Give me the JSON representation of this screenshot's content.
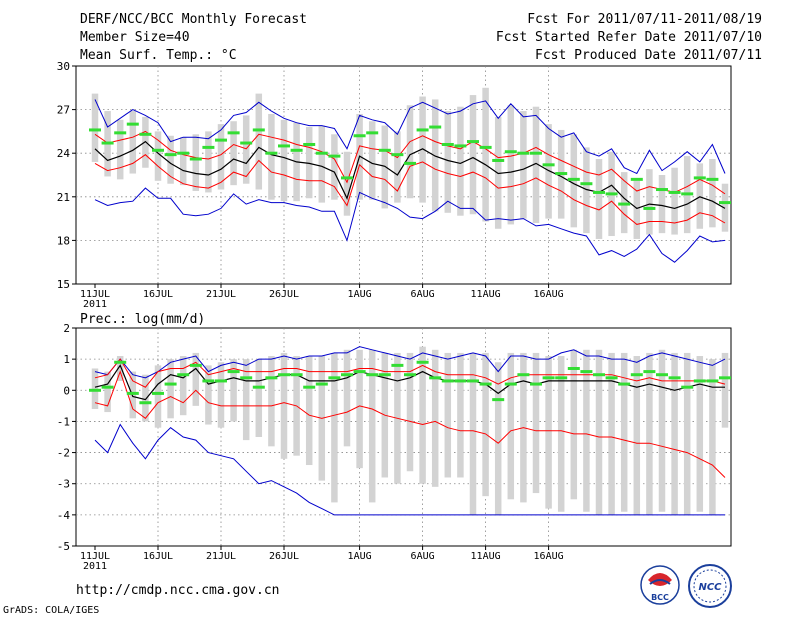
{
  "header": {
    "title": "DERF/NCC/BCC Monthly Forecast",
    "member_size": "Member Size=40",
    "temp_label": "Mean Surf. Temp.: °C",
    "forecast_period": "Fcst For 2011/07/11-2011/08/19",
    "started_refer": "Fcst Started Refer Date 2011/07/10",
    "produced": "Fcst Produced Date 2011/07/11",
    "prec_label": "Prec.: log(mm/d)"
  },
  "footer": {
    "url": "http://cmdp.ncc.cma.gov.cn",
    "credit": "GrADS: COLA/IGES",
    "logo_bcc_text": "BCC",
    "logo_ncc_text": "NCC"
  },
  "colors": {
    "box": "#d3d3d3",
    "mean": "#000000",
    "spread": "#ff0000",
    "extreme": "#0000cc",
    "obs": "#33dd33",
    "grid": "#888888"
  },
  "chart_data": [
    {
      "type": "box-ensemble",
      "title": "Mean Surf. Temp.: °C",
      "ylim": [
        15,
        30
      ],
      "yticks": [
        15,
        18,
        21,
        24,
        27,
        30
      ],
      "x_tick_labels": [
        "11JUL",
        "16JUL",
        "21JUL",
        "26JUL",
        "1AUG",
        "6AUG",
        "11AUG",
        "16AUG"
      ],
      "x_tick_sublabel": "2011",
      "series": [
        {
          "name": "mean",
          "values": [
            24.3,
            23.5,
            23.8,
            24.2,
            24.8,
            24,
            23.3,
            22.8,
            22.6,
            22.5,
            22.9,
            23.6,
            23.3,
            24.4,
            23.9,
            23.7,
            23.4,
            23.3,
            23.1,
            22.7,
            20.9,
            23.8,
            23.3,
            23.1,
            22.5,
            23.9,
            24.3,
            23.8,
            23.5,
            23.3,
            23.7,
            23.2,
            22.6,
            22.7,
            22.9,
            23.3,
            22.8,
            22.4,
            21.9,
            21.5,
            21.3,
            21.8,
            20.9,
            20.2,
            20.5,
            20.4,
            20.2,
            20.5,
            21,
            20.7,
            20.2
          ]
        },
        {
          "name": "upper_spread",
          "values": [
            25.3,
            24.7,
            24.9,
            25.1,
            25.5,
            24.9,
            24.2,
            23.9,
            23.7,
            23.6,
            23.9,
            24.6,
            24.3,
            25.3,
            25.1,
            24.9,
            24.6,
            24.4,
            24.1,
            23.6,
            22,
            24.5,
            24.3,
            24.2,
            23.7,
            24.8,
            25.2,
            24.8,
            24.5,
            24.3,
            24.8,
            24.3,
            23.7,
            23.8,
            24,
            24.4,
            23.9,
            23.5,
            23.1,
            22.7,
            22.5,
            22.9,
            22.1,
            21.4,
            21.7,
            21.5,
            21.3,
            21.7,
            22.2,
            21.8,
            21.2
          ]
        },
        {
          "name": "lower_spread",
          "values": [
            23.3,
            22.8,
            23,
            23.3,
            23.9,
            23.1,
            22.4,
            21.9,
            21.7,
            21.6,
            22,
            22.7,
            22.4,
            23.5,
            22.7,
            22.5,
            22.2,
            22.1,
            22.1,
            21.7,
            20.4,
            23.2,
            22.4,
            22.2,
            21.4,
            23.1,
            23.4,
            22.9,
            22.6,
            22.4,
            22.7,
            22.3,
            21.6,
            21.7,
            21.9,
            22.3,
            21.8,
            21.4,
            20.8,
            20.4,
            20.1,
            20.7,
            19.8,
            19.1,
            19.3,
            19.3,
            19.2,
            19.4,
            19.9,
            19.7,
            19.2
          ]
        },
        {
          "name": "max",
          "values": [
            27.7,
            25.8,
            26.4,
            27,
            26.6,
            26.1,
            24.8,
            25.1,
            25.1,
            25,
            25.6,
            26.6,
            26.8,
            27.5,
            26.9,
            26.4,
            26.1,
            25.9,
            25.9,
            25.7,
            24.3,
            26.6,
            26.3,
            26.1,
            25.3,
            27.1,
            27.5,
            27.1,
            26.7,
            26.9,
            27.4,
            27.6,
            26.4,
            27.4,
            26.5,
            26.6,
            25.7,
            25.1,
            25.4,
            24.1,
            23.8,
            24.3,
            23,
            22.6,
            24.2,
            22.8,
            23.4,
            24.1,
            23.4,
            24.6,
            22.6
          ]
        },
        {
          "name": "min",
          "values": [
            20.8,
            20.4,
            20.6,
            20.7,
            21.6,
            20.9,
            20.9,
            19.8,
            19.7,
            19.8,
            20.2,
            21.2,
            20.5,
            20.8,
            20.6,
            20.6,
            20.4,
            20.3,
            20,
            20,
            18,
            21.3,
            20.9,
            20.6,
            20.2,
            19.6,
            19.5,
            20,
            20.7,
            20.2,
            20.2,
            19.4,
            19.5,
            19.4,
            19.5,
            19,
            19.1,
            18.8,
            18.5,
            18.3,
            17,
            17.3,
            16.9,
            17.4,
            18.4,
            17.1,
            16.5,
            17.3,
            18.3,
            17.9,
            18
          ]
        },
        {
          "name": "box_top",
          "values": [
            28.1,
            26.9,
            26.3,
            26.9,
            26.5,
            25.5,
            25.2,
            25.1,
            25.3,
            25.5,
            26,
            26.2,
            26.6,
            28.1,
            26.7,
            26.3,
            26.1,
            25.8,
            25.9,
            25.3,
            24.1,
            26.7,
            26.2,
            25.9,
            25.5,
            27.3,
            27.9,
            27.7,
            26.9,
            27.2,
            28,
            28.5,
            26.5,
            27.3,
            26.9,
            27.2,
            26,
            25.6,
            25.3,
            24.4,
            23.6,
            24.1,
            22.7,
            22.1,
            22.9,
            22.5,
            23,
            23.8,
            23.3,
            23.6,
            21.9
          ]
        },
        {
          "name": "box_bottom",
          "values": [
            23.4,
            22.4,
            22.2,
            22.6,
            23,
            22.1,
            21.9,
            21.8,
            21.4,
            21.3,
            21.5,
            21.8,
            21.9,
            21.5,
            20.8,
            20.7,
            20.7,
            20.9,
            20.6,
            20.8,
            19.7,
            20.8,
            20.8,
            20.2,
            20.6,
            20.9,
            20.6,
            20,
            19.9,
            19.7,
            19.8,
            19.3,
            18.8,
            19.1,
            19.5,
            19.2,
            19.5,
            19.5,
            18.9,
            18.5,
            18.1,
            18.3,
            18.5,
            18.1,
            18.4,
            18.5,
            18.4,
            18.5,
            18.8,
            18.9,
            18.6
          ]
        },
        {
          "name": "observed_green",
          "values": [
            25.6,
            24.7,
            25.4,
            26,
            25.3,
            24.2,
            23.9,
            24,
            23.6,
            24.4,
            24.9,
            25.4,
            24.7,
            25.6,
            24,
            24.5,
            24.2,
            24.6,
            24,
            23.8,
            22.3,
            25.2,
            25.4,
            24.2,
            23.9,
            23.3,
            25.6,
            25.8,
            24.6,
            24.5,
            24.8,
            24.4,
            23.5,
            24.1,
            24,
            24,
            23.2,
            22.6,
            22.2,
            21.9,
            21.3,
            21.2,
            20.5,
            22.2,
            20.2,
            21.5,
            21.3,
            21.2,
            22.3,
            22.2,
            20.6
          ]
        }
      ]
    },
    {
      "type": "box-ensemble",
      "title": "Prec.: log(mm/d)",
      "ylim": [
        -5,
        2
      ],
      "yticks": [
        -5,
        -4,
        -3,
        -2,
        -1,
        0,
        1,
        2
      ],
      "x_tick_labels": [
        "11JUL",
        "16JUL",
        "21JUL",
        "26JUL",
        "1AUG",
        "6AUG",
        "11AUG",
        "16AUG"
      ],
      "x_tick_sublabel": "2011",
      "series": [
        {
          "name": "mean",
          "values": [
            0.1,
            0.2,
            0.8,
            -0.2,
            -0.3,
            0.2,
            0.5,
            0.4,
            0.7,
            0.2,
            0.3,
            0.4,
            0.3,
            0.3,
            0.4,
            0.5,
            0.5,
            0.3,
            0.3,
            0.3,
            0.4,
            0.6,
            0.5,
            0.4,
            0.3,
            0.4,
            0.6,
            0.4,
            0.3,
            0.3,
            0.3,
            0.2,
            -0.1,
            0.2,
            0.3,
            0.2,
            0.3,
            0.3,
            0.3,
            0.3,
            0.3,
            0.3,
            0.2,
            0.1,
            0.2,
            0.1,
            0,
            0.1,
            0.2,
            0.1,
            0.1
          ]
        },
        {
          "name": "upper_spread",
          "values": [
            0.4,
            0.5,
            1,
            0.3,
            0.1,
            0.6,
            0.7,
            0.7,
            0.9,
            0.5,
            0.6,
            0.7,
            0.6,
            0.6,
            0.6,
            0.7,
            0.7,
            0.6,
            0.6,
            0.6,
            0.6,
            0.7,
            0.7,
            0.6,
            0.6,
            0.6,
            0.8,
            0.6,
            0.5,
            0.5,
            0.5,
            0.4,
            0.2,
            0.4,
            0.5,
            0.5,
            0.5,
            0.5,
            0.5,
            0.5,
            0.5,
            0.5,
            0.4,
            0.3,
            0.4,
            0.3,
            0.3,
            0.3,
            0.3,
            0.3,
            0.2
          ]
        },
        {
          "name": "lower_spread",
          "values": [
            -0.4,
            -0.5,
            0.6,
            -0.6,
            -0.9,
            -0.4,
            -0.2,
            -0.4,
            0,
            -0.4,
            -0.5,
            -0.5,
            -0.5,
            -0.5,
            -0.5,
            -0.4,
            -0.5,
            -0.8,
            -0.9,
            -0.8,
            -0.7,
            -0.5,
            -0.6,
            -0.8,
            -0.9,
            -1,
            -1.1,
            -1,
            -1.2,
            -1.3,
            -1.3,
            -1.4,
            -1.7,
            -1.3,
            -1.2,
            -1.3,
            -1.3,
            -1.3,
            -1.4,
            -1.4,
            -1.5,
            -1.5,
            -1.6,
            -1.7,
            -1.7,
            -1.8,
            -1.9,
            -2,
            -2.2,
            -2.4,
            -2.8
          ]
        },
        {
          "name": "max",
          "values": [
            0.6,
            0.5,
            1.0,
            0.5,
            0.4,
            0.6,
            0.9,
            1.0,
            1.1,
            0.6,
            0.8,
            0.9,
            0.8,
            1.0,
            1.0,
            1.1,
            1.0,
            1.1,
            1.1,
            1.2,
            1.2,
            1.4,
            1.3,
            1.2,
            1.1,
            1.0,
            1.2,
            1.1,
            1.0,
            1.1,
            1.2,
            1.1,
            0.6,
            1.1,
            1.1,
            1.0,
            1.0,
            1.2,
            1.3,
            1.1,
            1.1,
            1.0,
            1.0,
            0.9,
            1.1,
            1.2,
            1.1,
            1.0,
            0.9,
            0.8,
            1.0
          ]
        },
        {
          "name": "min",
          "values": [
            -1.6,
            -2.0,
            -1.1,
            -1.7,
            -2.2,
            -1.6,
            -1.2,
            -1.5,
            -1.6,
            -2.0,
            -2.1,
            -2.2,
            -2.6,
            -3.0,
            -2.9,
            -3.1,
            -3.3,
            -3.6,
            -3.8,
            -4.0,
            -4.0,
            -4.0,
            -4.0,
            -4.0,
            -4.0,
            -4.0,
            -4.0,
            -4.0,
            -4.0,
            -4.0,
            -4.0,
            -4.0,
            -4.0,
            -4.0,
            -4.0,
            -4.0,
            -4.0,
            -4.0,
            -4.0,
            -4.0,
            -4.0,
            -4.0,
            -4.0,
            -4.0,
            -4.0,
            -4.0,
            -4.0,
            -4.0,
            -4.0,
            -4.0,
            -4.0
          ]
        },
        {
          "name": "box_top",
          "values": [
            0.7,
            0.6,
            1.1,
            0.6,
            0.5,
            0.8,
            1.0,
            1.1,
            1.2,
            0.8,
            0.9,
            1.0,
            1.0,
            1.0,
            1.1,
            1.2,
            1.1,
            1.1,
            1.1,
            1.2,
            1.3,
            1.3,
            1.3,
            1.2,
            1.2,
            1.2,
            1.4,
            1.3,
            1.2,
            1.2,
            1.2,
            1.2,
            0.9,
            1.2,
            1.2,
            1.2,
            1.1,
            1.1,
            1.3,
            1.3,
            1.3,
            1.2,
            1.2,
            1.1,
            1.2,
            1.3,
            1.2,
            1.2,
            1.1,
            1.0,
            1.2
          ]
        },
        {
          "name": "box_bottom",
          "values": [
            -0.6,
            -0.7,
            0.3,
            -0.9,
            -1.0,
            -1.2,
            -0.9,
            -0.8,
            -0.5,
            -1.1,
            -1.2,
            -1.0,
            -1.6,
            -1.5,
            -1.8,
            -2.2,
            -2.1,
            -2.4,
            -2.9,
            -3.6,
            -1.8,
            -2.5,
            -3.6,
            -2.8,
            -3.0,
            -2.6,
            -3.0,
            -3.1,
            -2.8,
            -2.8,
            -4.0,
            -3.4,
            -4.0,
            -3.5,
            -3.6,
            -3.3,
            -3.8,
            -3.9,
            -3.5,
            -3.9,
            -4.0,
            -4.0,
            -3.9,
            -4.0,
            -4.0,
            -3.9,
            -4.0,
            -4.0,
            -3.9,
            -4.0,
            -1.2
          ]
        },
        {
          "name": "observed_green",
          "values": [
            0.0,
            0.1,
            0.9,
            -0.1,
            -0.4,
            -0.1,
            0.2,
            0.5,
            0.8,
            0.3,
            0.3,
            0.6,
            0.4,
            0.1,
            0.4,
            0.5,
            0.5,
            0.1,
            0.2,
            0.4,
            0.5,
            0.6,
            0.5,
            0.5,
            0.8,
            0.5,
            0.9,
            0.4,
            0.3,
            0.3,
            0.3,
            0.2,
            -0.3,
            0.2,
            0.5,
            0.2,
            0.4,
            0.4,
            0.7,
            0.6,
            0.5,
            0.4,
            0.2,
            0.5,
            0.6,
            0.5,
            0.4,
            0.1,
            0.3,
            0.3,
            0.4
          ]
        }
      ]
    }
  ]
}
